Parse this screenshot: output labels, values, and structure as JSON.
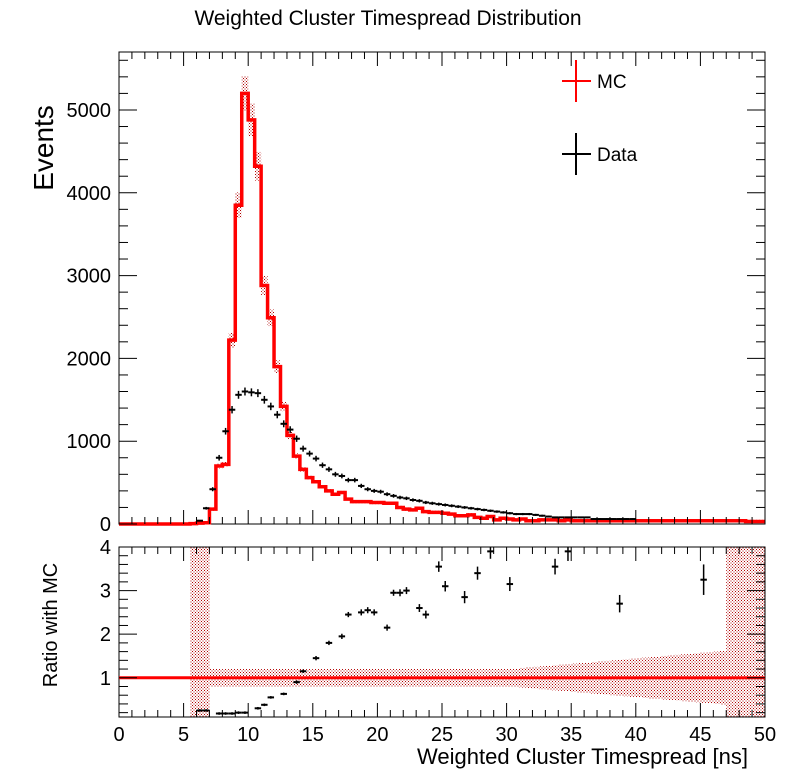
{
  "chart_data": [
    {
      "type": "histogram",
      "title": "Weighted Cluster Timespread Distribution",
      "ylabel": "Events",
      "xlim": [
        0,
        50
      ],
      "ylim": [
        0,
        5700
      ],
      "y_ticks": [
        "0",
        "1000",
        "2000",
        "3000",
        "4000",
        "5000"
      ],
      "grid": false,
      "legend_position": "top-right",
      "legend": {
        "mc_label": "MC",
        "data_label": "Data"
      },
      "bin_width": 0.5,
      "mc_color": "#ff0000",
      "data_color": "#000000",
      "mc_x0": 0,
      "mc_values": [
        0,
        0,
        0,
        0,
        0,
        0,
        0,
        0,
        0,
        0,
        0,
        5,
        10,
        15,
        180,
        700,
        720,
        2220,
        3850,
        5200,
        4880,
        4320,
        2880,
        2490,
        1900,
        1420,
        1070,
        820,
        660,
        560,
        510,
        450,
        400,
        360,
        380,
        300,
        270,
        270,
        270,
        260,
        260,
        250,
        250,
        200,
        180,
        170,
        190,
        150,
        140,
        140,
        130,
        120,
        100,
        100,
        110,
        80,
        70,
        90,
        50,
        70,
        60,
        50,
        60,
        40,
        40,
        50,
        50,
        50,
        40,
        50,
        40,
        40,
        40,
        40,
        40,
        40,
        40,
        40,
        40,
        40,
        40,
        40,
        40,
        40,
        40,
        40,
        40,
        40,
        40,
        40,
        40,
        40,
        40,
        40,
        40,
        40,
        40,
        30,
        30,
        30
      ],
      "data_x0": 6,
      "data_values": [
        40,
        190,
        420,
        800,
        1120,
        1380,
        1560,
        1600,
        1590,
        1580,
        1500,
        1420,
        1320,
        1210,
        1140,
        1030,
        910,
        850,
        790,
        710,
        660,
        600,
        580,
        530,
        530,
        460,
        420,
        400,
        390,
        360,
        340,
        320,
        310,
        290,
        280,
        260,
        250,
        240,
        230,
        220,
        210,
        200,
        190,
        180,
        170,
        160,
        150,
        140,
        130,
        120,
        120,
        120,
        110,
        100,
        90,
        80,
        80,
        80,
        80,
        80,
        80,
        60,
        60,
        60,
        60,
        60,
        60,
        60
      ],
      "mc_error_fraction": 0.04
    },
    {
      "type": "scatter",
      "ylabel": "Ratio with MC",
      "xlabel": "Weighted Cluster Timespread [ns]",
      "xlim": [
        0,
        50
      ],
      "ylim": [
        0.1,
        4.0
      ],
      "x_ticks": [
        "0",
        "5",
        "10",
        "15",
        "20",
        "25",
        "30",
        "35",
        "40",
        "45",
        "50"
      ],
      "y_ticks": [
        "1",
        "2",
        "3",
        "4"
      ],
      "reference_line": 1,
      "points": [
        {
          "x": 6.25,
          "y": 0.25
        },
        {
          "x": 6.75,
          "y": 0.25
        },
        {
          "x": 7.75,
          "y": 0.18
        },
        {
          "x": 8.25,
          "y": 0.18
        },
        {
          "x": 8.75,
          "y": 0.18
        },
        {
          "x": 9.25,
          "y": 0.2
        },
        {
          "x": 9.75,
          "y": 0.2
        },
        {
          "x": 10.75,
          "y": 0.3
        },
        {
          "x": 11.25,
          "y": 0.38
        },
        {
          "x": 11.75,
          "y": 0.55
        },
        {
          "x": 12.75,
          "y": 0.63
        },
        {
          "x": 13.75,
          "y": 0.9
        },
        {
          "x": 14.25,
          "y": 1.15
        },
        {
          "x": 15.25,
          "y": 1.45
        },
        {
          "x": 16.25,
          "y": 1.8
        },
        {
          "x": 17.25,
          "y": 1.95
        },
        {
          "x": 17.75,
          "y": 2.45
        },
        {
          "x": 18.75,
          "y": 2.5
        },
        {
          "x": 19.25,
          "y": 2.55
        },
        {
          "x": 19.75,
          "y": 2.5
        },
        {
          "x": 20.75,
          "y": 2.15
        },
        {
          "x": 21.25,
          "y": 2.95
        },
        {
          "x": 21.75,
          "y": 2.95
        },
        {
          "x": 22.25,
          "y": 3.0
        },
        {
          "x": 23.25,
          "y": 2.6
        },
        {
          "x": 23.75,
          "y": 2.45
        },
        {
          "x": 24.75,
          "y": 3.55
        },
        {
          "x": 25.25,
          "y": 3.1
        },
        {
          "x": 26.75,
          "y": 2.85
        },
        {
          "x": 27.75,
          "y": 3.4
        },
        {
          "x": 28.75,
          "y": 3.9
        },
        {
          "x": 30.25,
          "y": 3.15
        },
        {
          "x": 33.75,
          "y": 3.55
        },
        {
          "x": 34.75,
          "y": 3.9
        },
        {
          "x": 38.75,
          "y": 2.7
        },
        {
          "x": 45.25,
          "y": 3.25
        }
      ],
      "errors_y": [
        0.03,
        0.03,
        0.03,
        0.03,
        0.03,
        0.03,
        0.03,
        0.03,
        0.03,
        0.03,
        0.03,
        0.04,
        0.04,
        0.05,
        0.05,
        0.06,
        0.06,
        0.07,
        0.07,
        0.07,
        0.07,
        0.07,
        0.08,
        0.08,
        0.09,
        0.09,
        0.12,
        0.12,
        0.14,
        0.15,
        0.17,
        0.16,
        0.18,
        0.22,
        0.2,
        0.35
      ],
      "band_half_width": 0.2
    }
  ]
}
